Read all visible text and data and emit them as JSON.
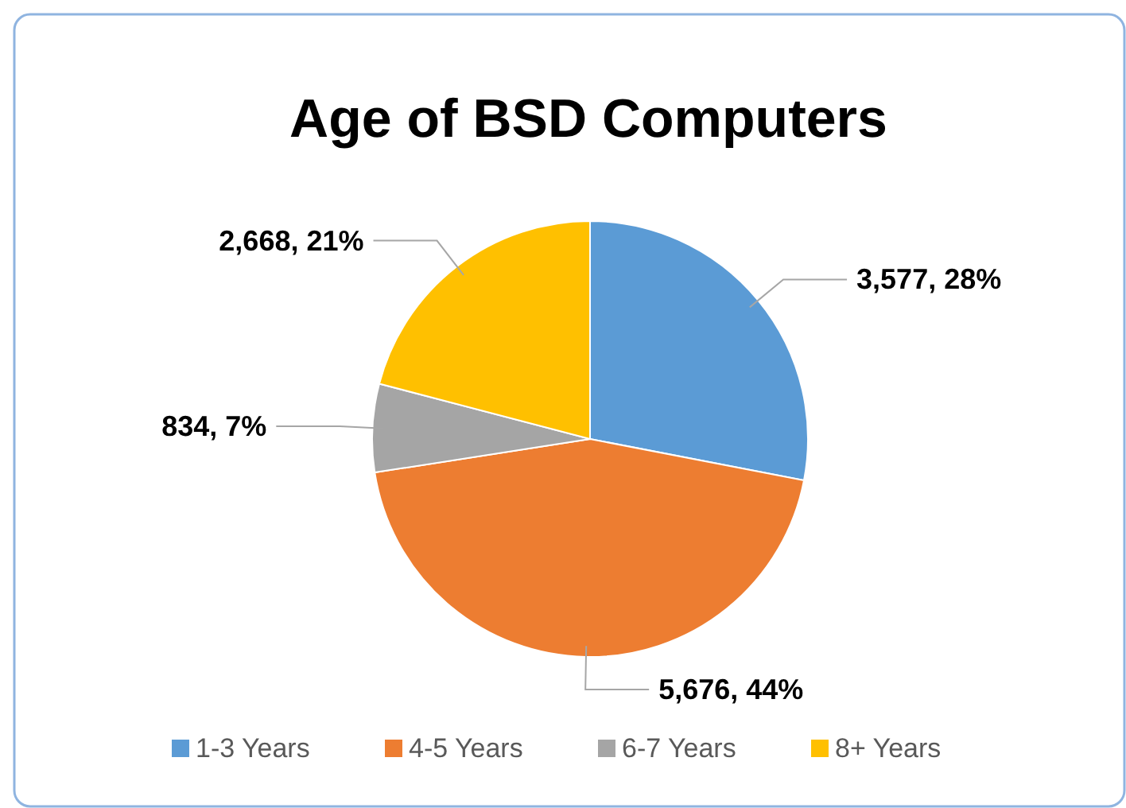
{
  "chart_data": {
    "type": "pie",
    "title": "Age of BSD Computers",
    "categories": [
      "1-3 Years",
      "4-5 Years",
      "6-7 Years",
      "8+ Years"
    ],
    "values": [
      3577,
      5676,
      834,
      2668
    ],
    "colors": [
      "#5b9bd5",
      "#ed7d31",
      "#a5a5a5",
      "#ffc000"
    ],
    "value_labels": [
      "3,577,  28%",
      "5,676,  44%",
      "834,  7%",
      "2,668, 21%"
    ],
    "legend": "bottom"
  }
}
